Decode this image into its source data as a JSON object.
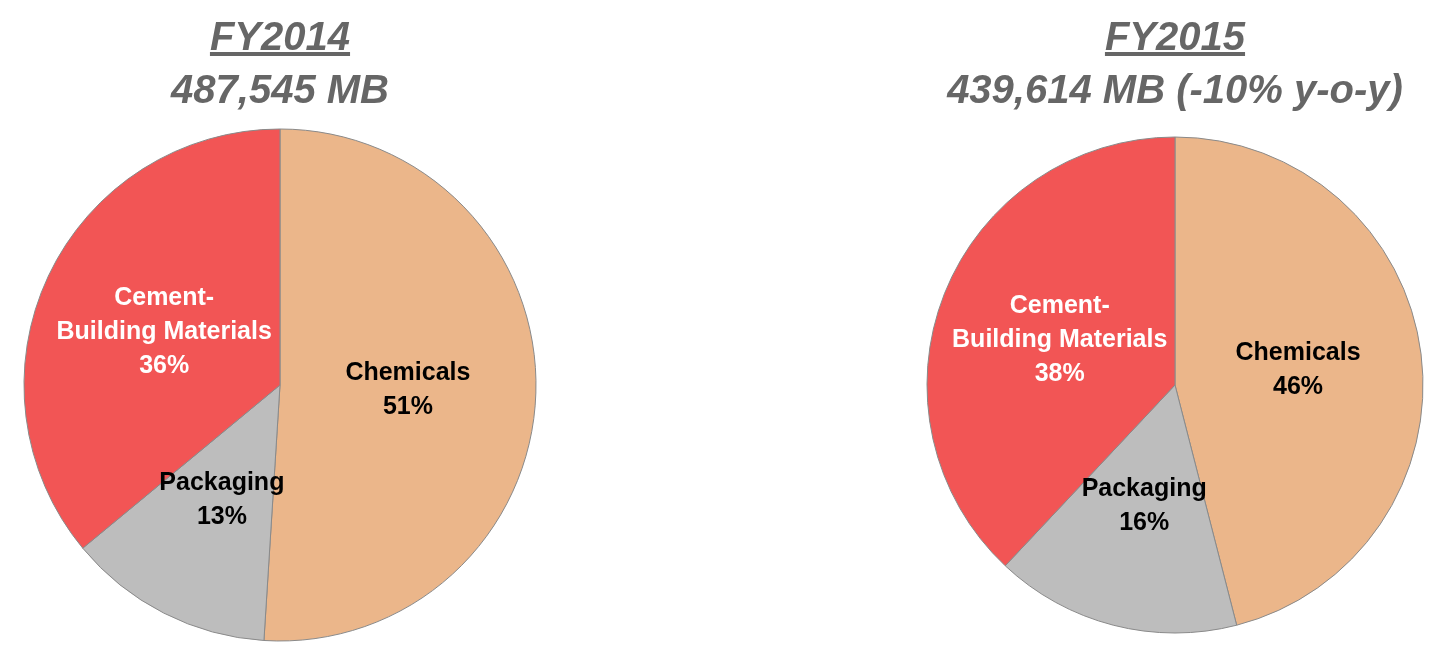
{
  "chart_data": [
    {
      "type": "pie",
      "title": "FY2014",
      "subtitle": "487,545 MB",
      "categories": [
        "Chemicals",
        "Packaging",
        "Cement-Building Materials"
      ],
      "values": [
        51,
        13,
        36
      ],
      "value_labels": [
        "51%",
        "13%",
        "36%"
      ],
      "colors": [
        "#ebb68a",
        "#bdbdbd",
        "#f25555"
      ]
    },
    {
      "type": "pie",
      "title": "FY2015",
      "subtitle": "439,614 MB (-10% y-o-y)",
      "categories": [
        "Chemicals",
        "Packaging",
        "Cement-Building Materials"
      ],
      "values": [
        46,
        16,
        38
      ],
      "value_labels": [
        "46%",
        "16%",
        "38%"
      ],
      "colors": [
        "#ebb68a",
        "#bdbdbd",
        "#f25555"
      ]
    }
  ]
}
